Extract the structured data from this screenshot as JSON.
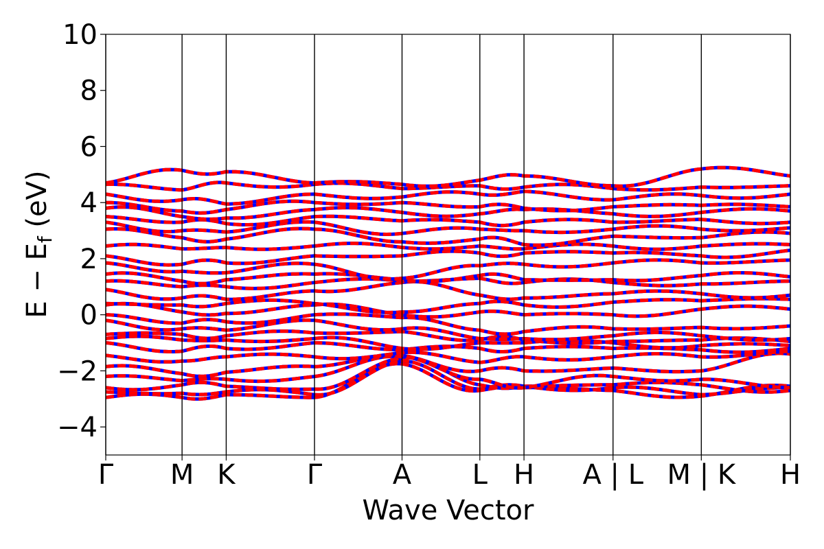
{
  "chart_data": {
    "type": "line",
    "title": "",
    "xlabel": "Wave Vector",
    "ylabel_main": "E − E",
    "ylabel_sub": "f",
    "ylabel_unit": " (eV)",
    "ylim": [
      -5,
      10
    ],
    "yticks": [
      -4,
      -2,
      0,
      2,
      4,
      6,
      8,
      10
    ],
    "ytick_labels": [
      "−4",
      "−2",
      "0",
      "2",
      "4",
      "6",
      "8",
      "10"
    ],
    "xlim": [
      0,
      9.15
    ],
    "kpoints": [
      {
        "label": "Γ",
        "x": 0
      },
      {
        "label": "M",
        "x": 1.02
      },
      {
        "label": "K",
        "x": 1.61
      },
      {
        "label": "Γ",
        "x": 2.79
      },
      {
        "label": "A",
        "x": 3.96
      },
      {
        "label": "L",
        "x": 5.0
      },
      {
        "label": "H",
        "x": 5.59
      },
      {
        "label": "A | L",
        "x": 6.78
      },
      {
        "label": "M | K",
        "x": 7.96
      },
      {
        "label": "H",
        "x": 9.15
      }
    ],
    "series_colors": [
      "#ff0000",
      "#0000ff"
    ],
    "grid": false,
    "legend": "none",
    "band_energies_at_kpoints": [
      [
        -2.95,
        -2.95,
        -2.85,
        -2.95,
        -1.75,
        -2.7,
        -2.6,
        -2.7,
        -2.9,
        -2.55
      ],
      [
        -2.75,
        -2.8,
        -2.75,
        -2.85,
        -1.65,
        -2.65,
        -2.55,
        -2.6,
        -2.85,
        -2.6
      ],
      [
        -2.6,
        -2.5,
        -2.55,
        -2.65,
        -1.55,
        -2.5,
        -2.55,
        -2.5,
        -2.5,
        -2.7
      ],
      [
        -2.2,
        -2.35,
        -2.3,
        -2.2,
        -1.5,
        -2.3,
        -2.6,
        -2.2,
        -2.3,
        -2.6
      ],
      [
        -1.85,
        -2.1,
        -2.05,
        -1.85,
        -1.45,
        -2.0,
        -2.0,
        -1.9,
        -2.0,
        -1.4
      ],
      [
        -1.45,
        -1.65,
        -1.5,
        -1.5,
        -1.35,
        -1.7,
        -1.5,
        -1.5,
        -1.5,
        -1.3
      ],
      [
        -1.0,
        -1.3,
        -1.2,
        -1.0,
        -1.25,
        -1.2,
        -1.2,
        -1.2,
        -1.25,
        -1.2
      ],
      [
        -0.85,
        -0.9,
        -0.9,
        -0.85,
        -1.2,
        -1.0,
        -1.0,
        -1.0,
        -1.1,
        -1.1
      ],
      [
        -0.7,
        -0.7,
        -0.75,
        -0.65,
        -0.6,
        -0.9,
        -0.9,
        -0.95,
        -0.9,
        -0.95
      ],
      [
        -0.2,
        -0.5,
        -0.55,
        -0.2,
        -0.5,
        -0.85,
        -0.85,
        -0.75,
        -0.75,
        -0.85
      ],
      [
        0.0,
        -0.3,
        -0.25,
        0.0,
        -0.1,
        -0.55,
        -0.6,
        -0.5,
        -0.45,
        -0.4
      ],
      [
        0.35,
        0.1,
        0.05,
        0.35,
        0.0,
        0.1,
        0.0,
        0.0,
        0.2,
        0.2
      ],
      [
        0.4,
        0.35,
        0.4,
        0.4,
        0.1,
        0.4,
        0.35,
        0.45,
        0.5,
        0.55
      ],
      [
        0.9,
        0.6,
        0.55,
        0.85,
        1.15,
        0.7,
        0.6,
        0.75,
        0.75,
        0.7
      ],
      [
        1.2,
        1.0,
        1.0,
        1.15,
        1.2,
        1.3,
        1.15,
        1.15,
        1.1,
        1.2
      ],
      [
        1.45,
        1.2,
        1.25,
        1.45,
        1.25,
        1.4,
        1.25,
        1.25,
        1.4,
        1.35
      ],
      [
        1.85,
        1.55,
        1.5,
        1.8,
        1.3,
        1.75,
        1.8,
        1.85,
        1.85,
        1.95
      ],
      [
        2.1,
        1.8,
        1.85,
        2.1,
        2.1,
        2.2,
        2.2,
        2.2,
        2.1,
        2.3
      ],
      [
        2.45,
        2.35,
        2.4,
        2.45,
        2.4,
        2.45,
        2.35,
        2.45,
        2.45,
        2.5
      ],
      [
        3.05,
        2.75,
        2.7,
        3.05,
        2.6,
        2.7,
        2.5,
        2.8,
        2.75,
        2.9
      ],
      [
        3.3,
        3.0,
        2.95,
        3.3,
        2.9,
        3.05,
        3.0,
        3.05,
        3.05,
        3.1
      ],
      [
        3.5,
        3.3,
        3.25,
        3.5,
        3.35,
        3.3,
        3.3,
        3.3,
        3.4,
        3.3
      ],
      [
        3.8,
        3.5,
        3.45,
        3.75,
        3.65,
        3.6,
        3.75,
        3.6,
        3.65,
        3.7
      ],
      [
        4.0,
        3.7,
        3.75,
        4.0,
        4.0,
        3.85,
        3.8,
        3.85,
        3.9,
        3.85
      ],
      [
        4.3,
        4.1,
        3.95,
        4.3,
        4.2,
        4.3,
        4.4,
        4.1,
        4.25,
        4.3
      ],
      [
        4.65,
        4.45,
        4.7,
        4.65,
        4.5,
        4.6,
        4.55,
        4.5,
        4.55,
        4.6
      ],
      [
        4.7,
        5.15,
        5.1,
        4.7,
        4.65,
        4.8,
        4.95,
        4.6,
        5.2,
        4.95
      ]
    ]
  }
}
